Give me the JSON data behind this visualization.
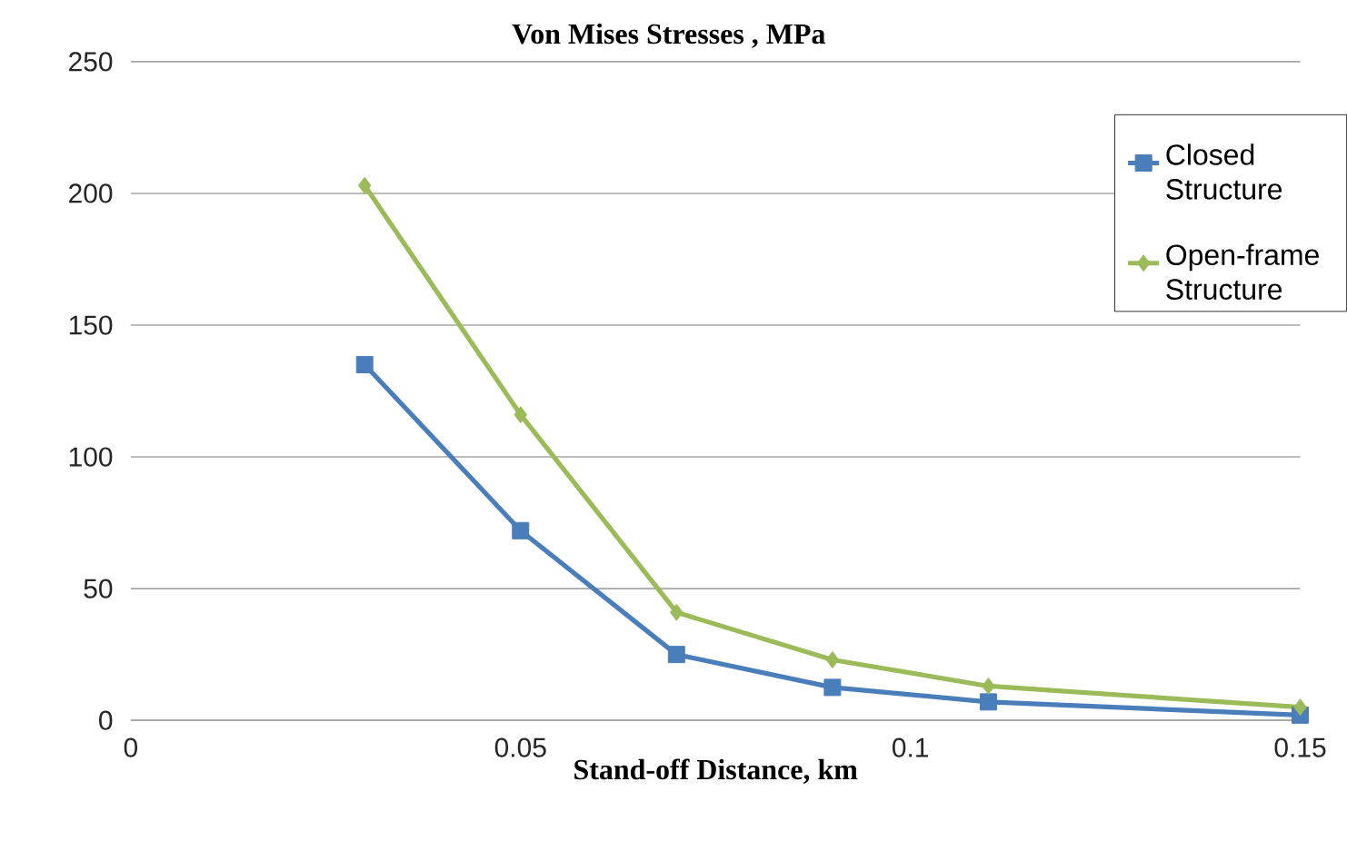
{
  "chart_data": {
    "type": "line",
    "title": "Von Mises Stresses , MPa",
    "xlabel": "Stand-off Distance, km",
    "x": [
      0.03,
      0.05,
      0.07,
      0.09,
      0.11,
      0.15
    ],
    "series": [
      {
        "name": "Closed Structure",
        "color": "#4a7ebb",
        "marker": "square",
        "values": [
          135,
          72,
          25,
          12.5,
          7,
          2
        ]
      },
      {
        "name": "Open-frame Structure",
        "color": "#9bbb59",
        "marker": "diamond",
        "values": [
          203,
          116,
          41,
          23,
          13,
          5
        ]
      }
    ],
    "xlim": [
      0,
      0.15
    ],
    "ylim": [
      0,
      250
    ],
    "xticks": [
      0,
      0.05,
      0.1,
      0.15
    ],
    "yticks": [
      0,
      50,
      100,
      150,
      200,
      250
    ],
    "grid": "y",
    "legend": "top right",
    "line_style": "solid"
  }
}
